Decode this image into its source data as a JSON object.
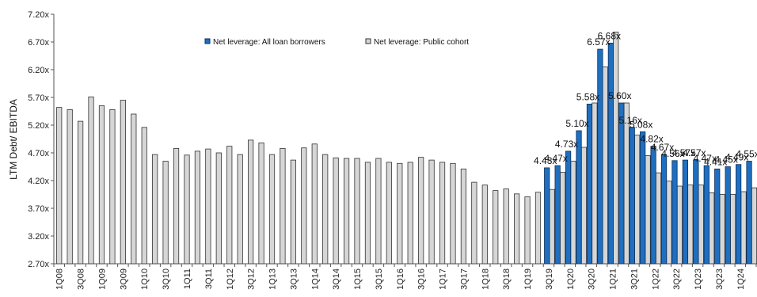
{
  "chart_data": {
    "type": "bar",
    "ylabel": "LTM Debt/ EBITDA",
    "ylim": [
      2.7,
      7.2
    ],
    "yticks": [
      "2.70x",
      "3.20x",
      "3.70x",
      "4.20x",
      "4.70x",
      "5.20x",
      "5.70x",
      "6.20x",
      "6.70x",
      "7.20x"
    ],
    "grid": false,
    "legend_position": "top-center",
    "colors": {
      "all_loan": "#1f6fc1",
      "public": "#d6d6d6",
      "public_border": "#333333"
    },
    "categories": [
      "1Q08",
      "2Q08",
      "3Q08",
      "4Q08",
      "1Q09",
      "2Q09",
      "3Q09",
      "4Q09",
      "1Q10",
      "2Q10",
      "3Q10",
      "4Q10",
      "1Q11",
      "2Q11",
      "3Q11",
      "4Q11",
      "1Q12",
      "2Q12",
      "3Q12",
      "4Q12",
      "1Q13",
      "2Q13",
      "3Q13",
      "4Q13",
      "1Q14",
      "2Q14",
      "3Q14",
      "4Q14",
      "1Q15",
      "2Q15",
      "3Q15",
      "4Q15",
      "1Q16",
      "2Q16",
      "3Q16",
      "4Q16",
      "1Q17",
      "2Q17",
      "3Q17",
      "4Q17",
      "1Q18",
      "2Q18",
      "3Q18",
      "4Q18",
      "1Q19",
      "2Q19",
      "3Q19",
      "4Q19",
      "1Q20",
      "2Q20",
      "3Q20",
      "4Q20",
      "1Q21",
      "2Q21",
      "3Q21",
      "4Q21",
      "1Q22",
      "2Q22",
      "3Q22",
      "4Q22",
      "1Q23",
      "2Q23",
      "3Q23",
      "4Q23",
      "1Q24",
      "2Q24"
    ],
    "xtick_labels": [
      "1Q08",
      "3Q08",
      "1Q09",
      "3Q09",
      "1Q10",
      "3Q10",
      "1Q11",
      "3Q11",
      "1Q12",
      "3Q12",
      "1Q13",
      "3Q13",
      "1Q14",
      "3Q14",
      "1Q15",
      "3Q15",
      "1Q16",
      "3Q16",
      "1Q17",
      "3Q17",
      "1Q18",
      "3Q18",
      "1Q19",
      "3Q19",
      "1Q20",
      "3Q20",
      "1Q21",
      "3Q21",
      "1Q22",
      "3Q22",
      "1Q23",
      "3Q23",
      "1Q24"
    ],
    "series": [
      {
        "name": "Net leverage: All loan borrowers",
        "color": "#1f6fc1",
        "values": [
          null,
          null,
          null,
          null,
          null,
          null,
          null,
          null,
          null,
          null,
          null,
          null,
          null,
          null,
          null,
          null,
          null,
          null,
          null,
          null,
          null,
          null,
          null,
          null,
          null,
          null,
          null,
          null,
          null,
          null,
          null,
          null,
          null,
          null,
          null,
          null,
          null,
          null,
          null,
          null,
          null,
          null,
          null,
          null,
          null,
          null,
          4.43,
          4.47,
          4.73,
          5.1,
          5.58,
          6.57,
          6.68,
          5.6,
          5.16,
          5.08,
          4.82,
          4.67,
          4.56,
          4.57,
          4.57,
          4.47,
          4.41,
          4.45,
          4.49,
          4.55
        ],
        "labels": [
          null,
          null,
          null,
          null,
          null,
          null,
          null,
          null,
          null,
          null,
          null,
          null,
          null,
          null,
          null,
          null,
          null,
          null,
          null,
          null,
          null,
          null,
          null,
          null,
          null,
          null,
          null,
          null,
          null,
          null,
          null,
          null,
          null,
          null,
          null,
          null,
          null,
          null,
          null,
          null,
          null,
          null,
          null,
          null,
          null,
          null,
          "4.43x",
          "4.47x",
          "4.73x",
          "5.10x",
          "5.58x",
          "6.57x",
          "6.68x",
          "5.60x",
          "5.16x",
          "5.08x",
          "4.82x",
          "4.67x",
          "4.56x",
          "4.57x",
          "4.57x",
          "4.47x",
          "4.41x",
          "4.45x",
          "4.49x",
          "4.55x"
        ]
      },
      {
        "name": "Net leverage: Public cohort",
        "color": "#d6d6d6",
        "values": [
          5.52,
          5.48,
          5.27,
          5.71,
          5.55,
          5.48,
          5.65,
          5.4,
          5.16,
          4.67,
          4.55,
          4.78,
          4.66,
          4.73,
          4.77,
          4.7,
          4.82,
          4.67,
          4.93,
          4.88,
          4.67,
          4.78,
          4.57,
          4.79,
          4.86,
          4.67,
          4.61,
          4.6,
          4.6,
          4.53,
          4.6,
          4.53,
          4.51,
          4.53,
          4.62,
          4.57,
          4.53,
          4.51,
          4.41,
          4.17,
          4.12,
          4.02,
          4.05,
          3.96,
          3.91,
          3.99,
          4.04,
          4.35,
          4.55,
          4.8,
          5.6,
          6.25,
          6.88,
          5.6,
          5.02,
          4.65,
          4.34,
          4.19,
          4.1,
          4.12,
          4.12,
          3.98,
          3.95,
          3.95,
          4.0,
          4.07
        ]
      }
    ]
  }
}
